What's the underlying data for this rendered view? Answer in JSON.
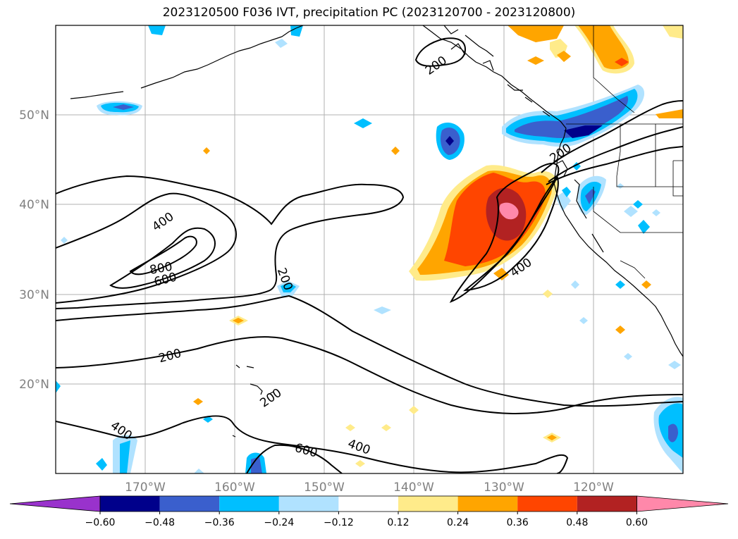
{
  "title": "2023120500 F036 IVT, precipitation PC (2023120700 - 2023120800)",
  "lat_ticks": [
    "50°N",
    "40°N",
    "30°N",
    "20°N"
  ],
  "lon_ticks": [
    "170°W",
    "160°W",
    "150°W",
    "140°W",
    "130°W",
    "120°W"
  ],
  "colorbar": {
    "labels": [
      "−0.60",
      "−0.48",
      "−0.36",
      "−0.24",
      "−0.12",
      "0.12",
      "0.24",
      "0.36",
      "0.48",
      "0.60"
    ],
    "colors": [
      "#9932cc",
      "#00008b",
      "#3a5fcd",
      "#00bfff",
      "#b0e2ff",
      "#ffffff",
      "#ffeb8a",
      "#ffa500",
      "#ff4500",
      "#b22222",
      "#ff88aa"
    ]
  },
  "contour_labels": [
    "200",
    "200",
    "200",
    "200",
    "200",
    "400",
    "400",
    "400",
    "400",
    "600",
    "600",
    "800"
  ]
}
